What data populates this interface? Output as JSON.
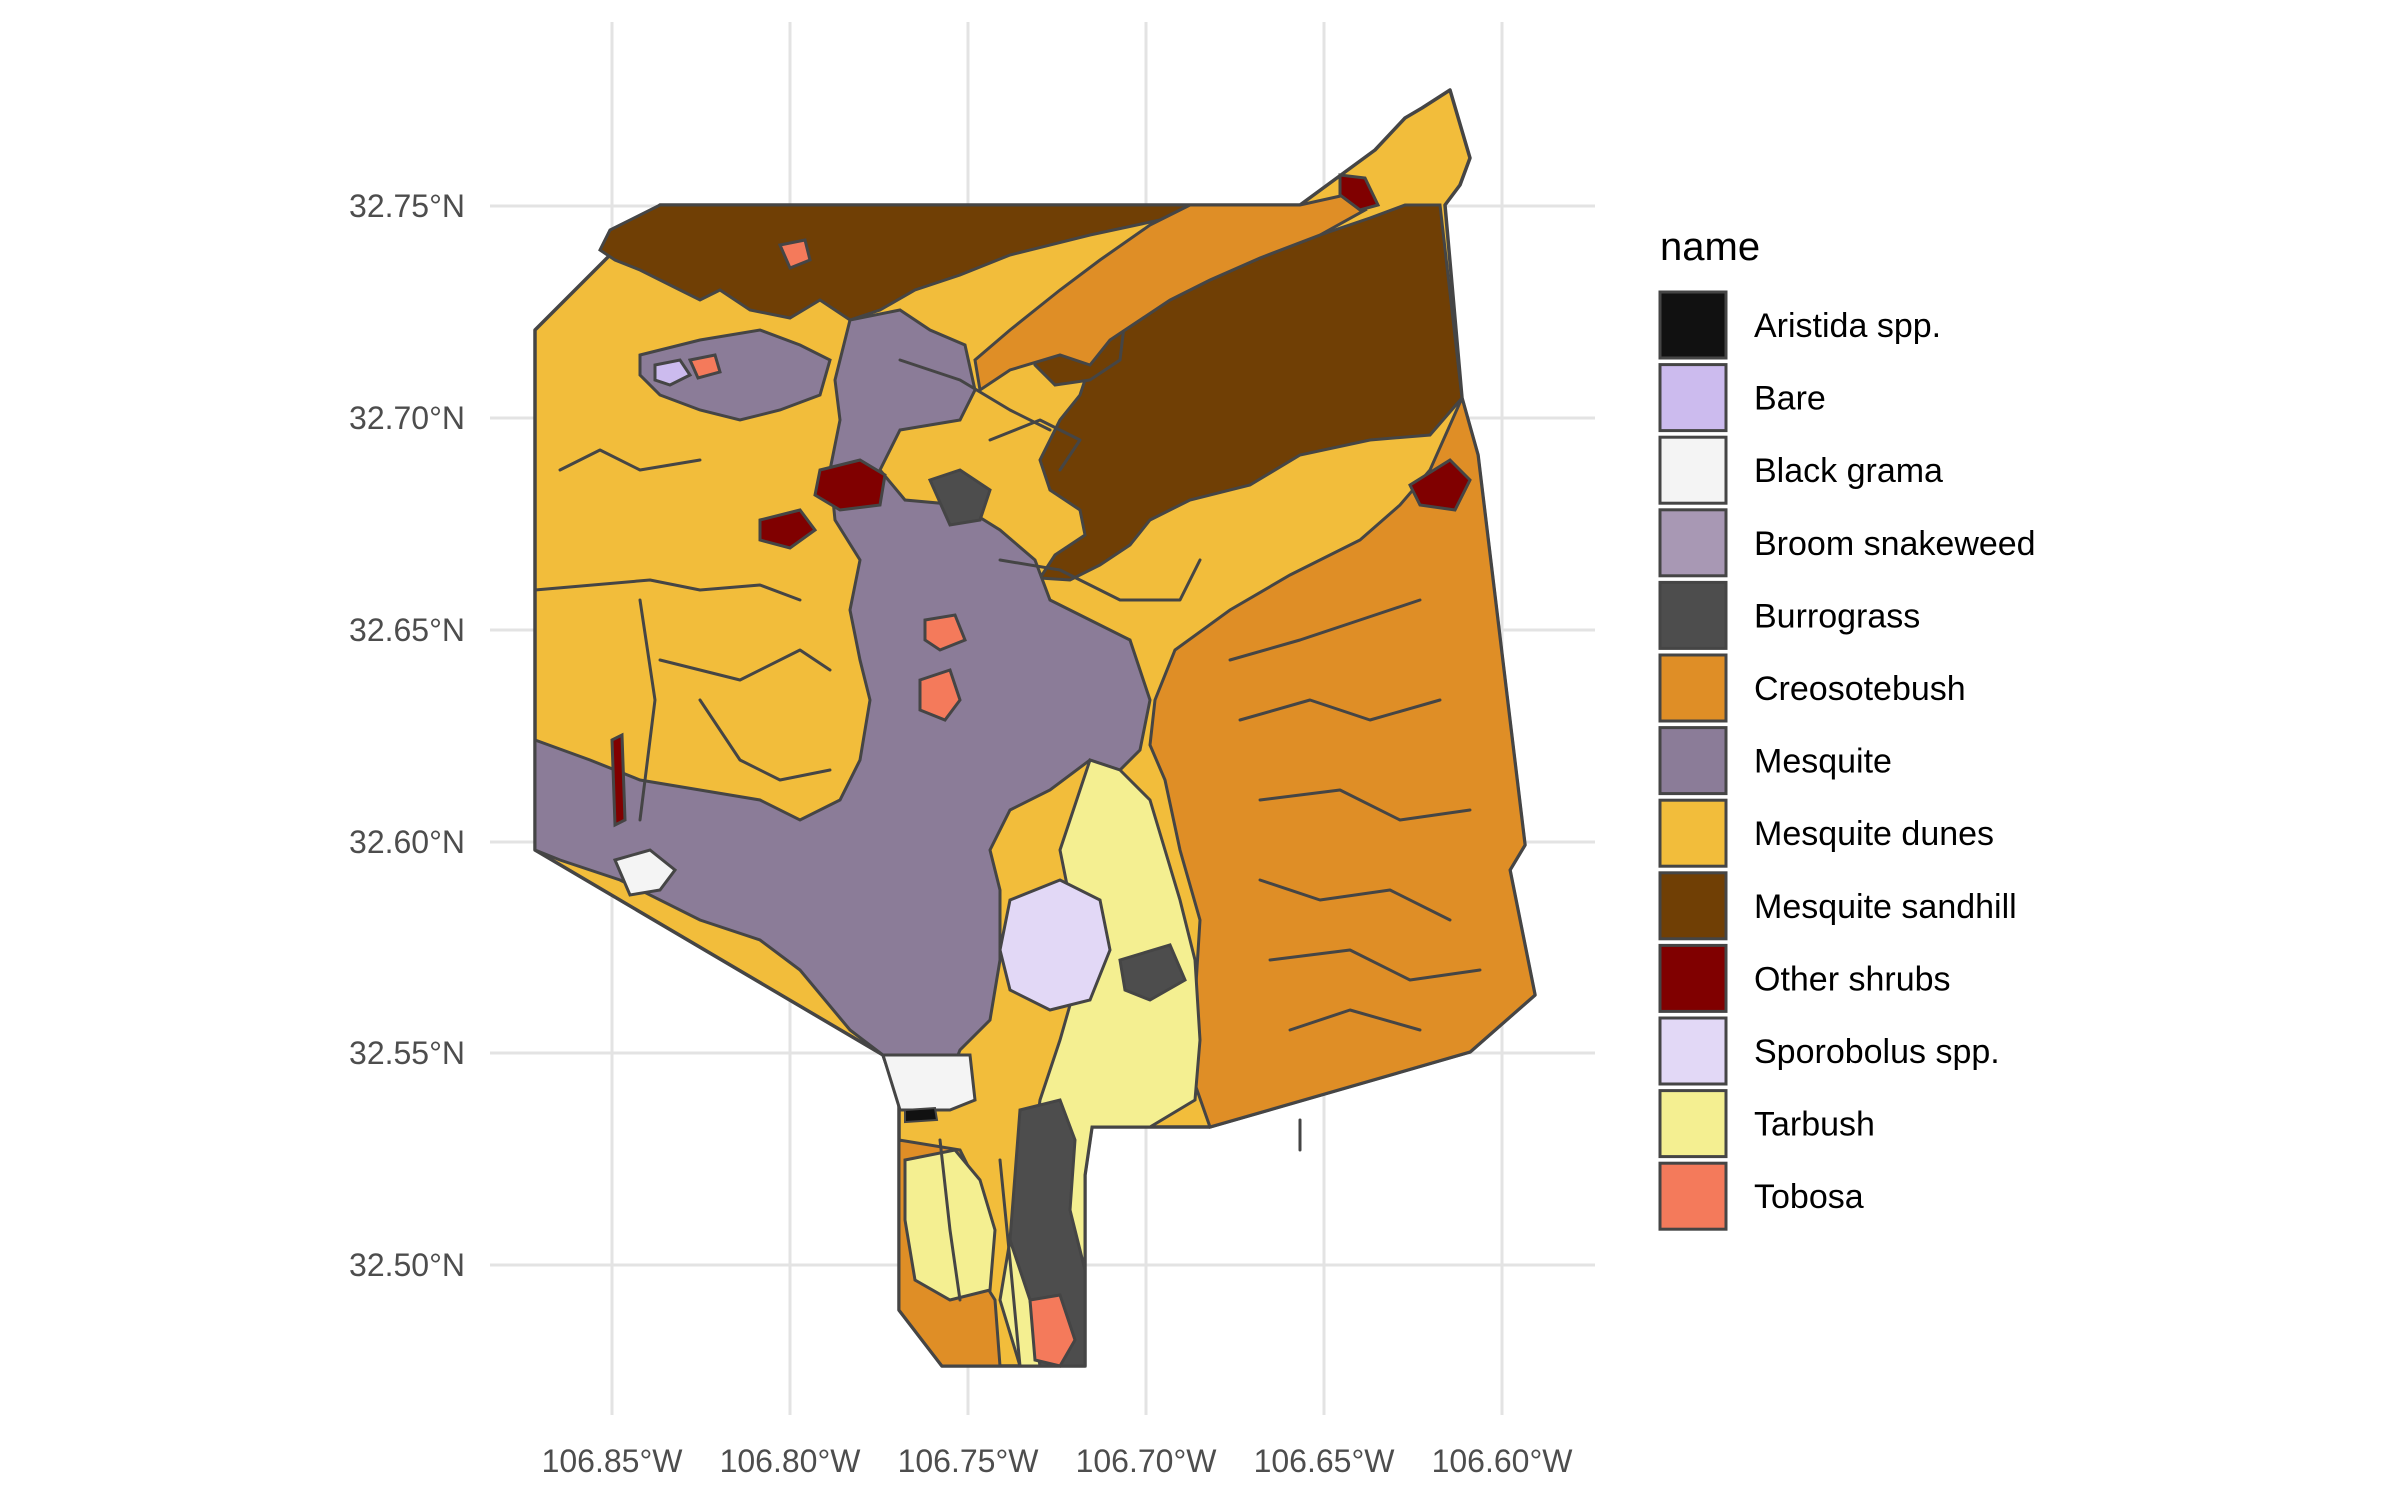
{
  "colors": {
    "aristida": "#111111",
    "bare": "#ccbbee",
    "black_grama": "#f4f4f4",
    "broom_snakeweed": "#a898b4",
    "burrograss": "#4d4d4d",
    "creosotebush": "#df8e26",
    "mesquite": "#8b7c98",
    "mesquite_dunes": "#f2bd3b",
    "mesquite_sandhill": "#703f05",
    "other_shrubs": "#800000",
    "sporobolus": "#e2d8f6",
    "tarbush": "#f4ef91",
    "tobosa": "#f47a5b",
    "grid": "#e3e3e3",
    "border": "#454545"
  },
  "axes": {
    "x_ticks": [
      "106.85°W",
      "106.80°W",
      "106.75°W",
      "106.70°W",
      "106.65°W",
      "106.60°W"
    ],
    "y_ticks": [
      "32.75°N",
      "32.70°N",
      "32.65°N",
      "32.60°N",
      "32.55°N",
      "32.50°N"
    ],
    "x_values": [
      -106.85,
      -106.8,
      -106.75,
      -106.7,
      -106.65,
      -106.6
    ],
    "y_values": [
      32.75,
      32.7,
      32.65,
      32.6,
      32.55,
      32.5
    ]
  },
  "legend": {
    "title": "name",
    "items": [
      {
        "label": "Aristida spp.",
        "color": "#111111"
      },
      {
        "label": "Bare",
        "color": "#ccbbee"
      },
      {
        "label": "Black grama",
        "color": "#f4f4f4"
      },
      {
        "label": "Broom snakeweed",
        "color": "#a898b4"
      },
      {
        "label": "Burrograss",
        "color": "#4d4d4d"
      },
      {
        "label": "Creosotebush",
        "color": "#df8e26"
      },
      {
        "label": "Mesquite",
        "color": "#8b7c98"
      },
      {
        "label": "Mesquite dunes",
        "color": "#f2bd3b"
      },
      {
        "label": "Mesquite sandhill",
        "color": "#703f05"
      },
      {
        "label": "Other shrubs",
        "color": "#800000"
      },
      {
        "label": "Sporobolus spp.",
        "color": "#e2d8f6"
      },
      {
        "label": "Tarbush",
        "color": "#f4ef91"
      },
      {
        "label": "Tobosa",
        "color": "#f47a5b"
      }
    ]
  }
}
